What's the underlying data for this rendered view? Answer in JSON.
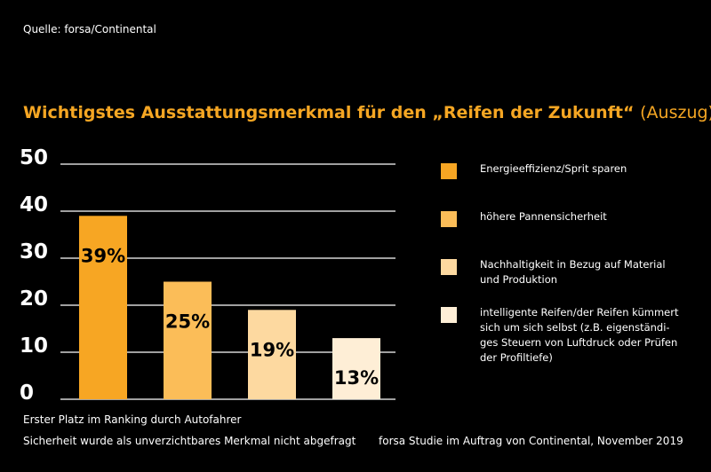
{
  "source": "Quelle: forsa/Continental",
  "chart_data": {
    "type": "bar",
    "title": "Wichtigstes Ausstattungsmerkmal für den „Reifen der Zukunft“",
    "title_suffix": "(Auszug)",
    "categories": [
      "Energieeffizienz/Sprit sparen",
      "höhere Pannensicherheit",
      "Nachhaltigkeit in Bezug auf Material und Produktion",
      "intelligente Reifen/der Reifen kümmert sich um sich selbst (z.B. eigenständiges Steuern von Luftdruck oder Prüfen der Profiltiefe)"
    ],
    "legend_labels": [
      "Energieeffizienz/Sprit sparen",
      "höhere Pannensicherheit",
      "Nachhaltigkeit in Bezug auf Material und Produktion",
      "intelligente Reifen/der Reifen kümmert sich um sich selbst (z.B. eigenständi-ges Steuern von Luftdruck oder Prüfen der Profiltiefe)"
    ],
    "values": [
      39,
      25,
      19,
      13
    ],
    "data_labels": [
      "39%",
      "25%",
      "19%",
      "13%"
    ],
    "colors": [
      "#f7a623",
      "#fbbd58",
      "#fdd9a0",
      "#feeed6"
    ],
    "y_ticks": [
      "0",
      "10",
      "20",
      "30",
      "40",
      "50"
    ],
    "ylim": [
      0,
      50
    ],
    "grid": true,
    "legend_position": "right"
  },
  "footer": {
    "line1": "Erster Platz im Ranking durch Autofahrer",
    "line2": "Sicherheit wurde als unverzichtbares Merkmal nicht abgefragt",
    "study": "forsa Studie im Auftrag von Continental, November 2019"
  }
}
